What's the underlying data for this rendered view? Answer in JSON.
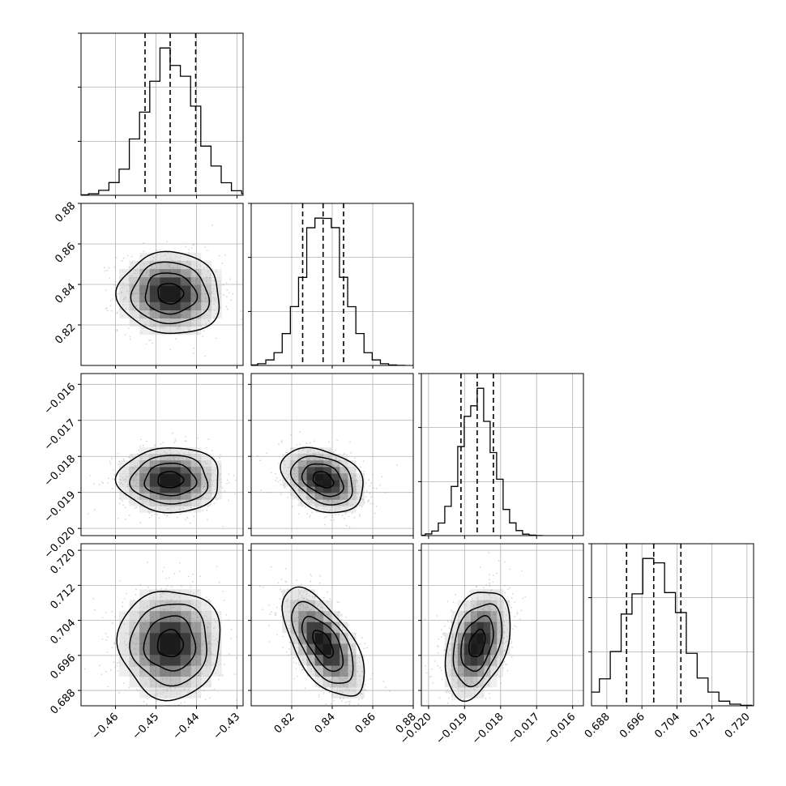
{
  "chart_data": {
    "type": "corner",
    "parameters": [
      {
        "index": 0,
        "median": -0.4465,
        "q16": -0.4527,
        "q84": -0.4402,
        "sigma": 0.0063,
        "axis_range": [
          -0.4685,
          -0.4285
        ],
        "ticks": [
          -0.46,
          -0.45,
          -0.44,
          -0.43
        ],
        "tick_labels": [
          "−0.46",
          "−0.45",
          "−0.44",
          "−0.43"
        ]
      },
      {
        "index": 1,
        "median": 0.8355,
        "q16": 0.8254,
        "q84": 0.8456,
        "sigma": 0.0101,
        "axis_range": [
          0.8,
          0.88
        ],
        "ticks": [
          0.82,
          0.84,
          0.86,
          0.88
        ],
        "tick_labels": [
          "0.82",
          "0.84",
          "0.86",
          "0.88"
        ]
      },
      {
        "index": 2,
        "median": -0.01865,
        "q16": -0.0191,
        "q84": -0.0182,
        "sigma": 0.00045,
        "axis_range": [
          -0.0202,
          -0.0157
        ],
        "ticks": [
          -0.02,
          -0.019,
          -0.018,
          -0.017,
          -0.016
        ],
        "tick_labels": [
          "−0.020",
          "−0.019",
          "−0.018",
          "−0.017",
          "−0.016"
        ]
      },
      {
        "index": 3,
        "median": 0.6987,
        "q16": 0.6925,
        "q84": 0.7049,
        "sigma": 0.0062,
        "axis_range": [
          0.6845,
          0.7215
        ],
        "ticks": [
          0.688,
          0.696,
          0.704,
          0.712,
          0.72
        ],
        "tick_labels": [
          "0.688",
          "0.696",
          "0.704",
          "0.712",
          "0.720"
        ]
      }
    ],
    "histogram_bins": 20,
    "correlations": [
      {
        "pair": [
          0,
          1
        ],
        "rho": -0.05
      },
      {
        "pair": [
          0,
          2
        ],
        "rho": 0.0
      },
      {
        "pair": [
          1,
          2
        ],
        "rho": -0.32
      },
      {
        "pair": [
          0,
          3
        ],
        "rho": 0.0
      },
      {
        "pair": [
          1,
          3
        ],
        "rho": -0.62
      },
      {
        "pair": [
          2,
          3
        ],
        "rho": 0.35
      }
    ],
    "quantile_lines": [
      0.16,
      0.5,
      0.84
    ],
    "contour_levels": [
      0.5,
      1.0,
      1.5,
      2.0
    ],
    "grid": true,
    "colors": {
      "hist": "#000000",
      "points": "#8c8c8c",
      "density": "#000000"
    }
  }
}
